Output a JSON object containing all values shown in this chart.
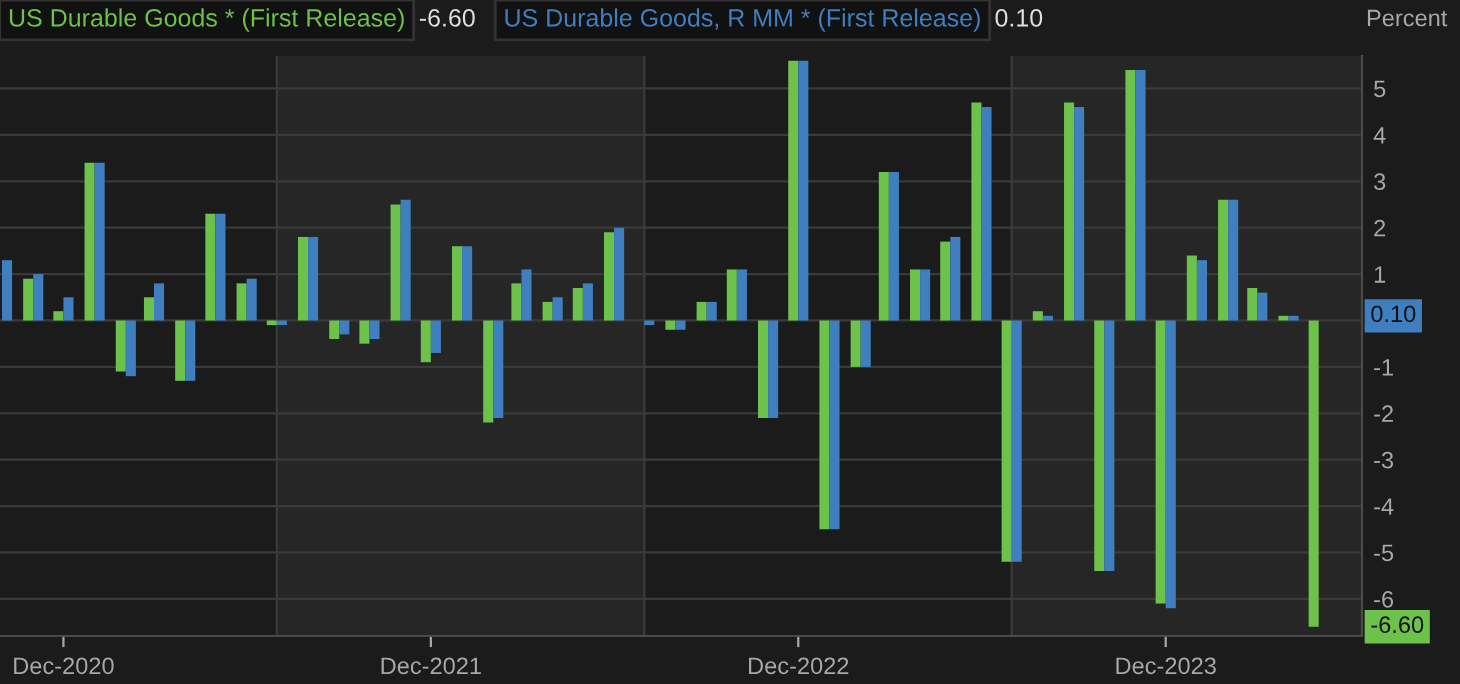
{
  "chart_data": {
    "type": "bar",
    "ylabel": "Percent",
    "x": [
      "2020-10",
      "2020-11",
      "2020-12",
      "2021-01",
      "2021-02",
      "2021-03",
      "2021-04",
      "2021-05",
      "2021-06",
      "2021-07",
      "2021-08",
      "2021-09",
      "2021-10",
      "2021-11",
      "2021-12",
      "2022-01",
      "2022-02",
      "2022-03",
      "2022-04",
      "2022-05",
      "2022-06",
      "2022-07",
      "2022-08",
      "2022-09",
      "2022-10",
      "2022-11",
      "2022-12",
      "2023-01",
      "2023-02",
      "2023-03",
      "2023-04",
      "2023-05",
      "2023-06",
      "2023-07",
      "2023-08",
      "2023-09",
      "2023-10",
      "2023-11",
      "2023-12",
      "2024-01",
      "2024-02",
      "2024-03",
      "2024-04",
      "2024-05"
    ],
    "series": [
      {
        "name": "US Durable Goods * (First Release)",
        "color": "#6cc24a",
        "values": [
          null,
          0.9,
          0.2,
          3.4,
          -1.1,
          0.5,
          -1.3,
          2.3,
          0.8,
          -0.1,
          1.8,
          -0.4,
          -0.5,
          2.5,
          -0.9,
          1.6,
          -2.2,
          0.8,
          0.4,
          0.7,
          1.9,
          0.0,
          -0.2,
          0.4,
          1.1,
          -2.1,
          5.6,
          -4.5,
          -1.0,
          3.2,
          1.1,
          1.7,
          4.7,
          -5.2,
          0.2,
          4.7,
          -5.4,
          5.4,
          -6.1,
          1.4,
          2.6,
          0.7,
          0.1,
          -6.6
        ]
      },
      {
        "name": "US Durable Goods, R MM * (First Release)",
        "color": "#3f7fbf",
        "values": [
          1.3,
          1.0,
          0.5,
          3.4,
          -1.2,
          0.8,
          -1.3,
          2.3,
          0.9,
          -0.1,
          1.8,
          -0.3,
          -0.4,
          2.6,
          -0.7,
          1.6,
          -2.1,
          1.1,
          0.5,
          0.8,
          2.0,
          -0.1,
          -0.2,
          0.4,
          1.1,
          -2.1,
          5.6,
          -4.5,
          -1.0,
          3.2,
          1.1,
          1.8,
          4.6,
          -5.2,
          0.1,
          4.6,
          -5.4,
          5.4,
          -6.2,
          1.3,
          2.6,
          0.6,
          0.1,
          null
        ]
      }
    ],
    "annotations": [
      "-6.60",
      "0.10"
    ],
    "xlim": [
      "2020-09-29",
      "2024-06-13"
    ],
    "xticks": [
      {
        "value": "2020-12",
        "label": "Dec-2020"
      },
      {
        "value": "2021-12",
        "label": "Dec-2021"
      },
      {
        "value": "2022-12",
        "label": "Dec-2022"
      },
      {
        "value": "2023-12",
        "label": "Dec-2023"
      }
    ],
    "ylim": [
      -6.8,
      5.7
    ],
    "yticks": [
      -6,
      -5,
      -4,
      -3,
      -2,
      -1,
      {
        "value": 0,
        "label": null
      },
      1,
      2,
      3,
      4,
      5
    ],
    "bands": [
      {
        "axis": "x",
        "from": "2021-07-01",
        "to": "2022-07-01",
        "color": "#262627"
      },
      {
        "axis": "x",
        "from": "2023-07-01",
        "to": "2024-06-13",
        "color": "#262627"
      }
    ],
    "grid": "y",
    "legend": "top left"
  }
}
